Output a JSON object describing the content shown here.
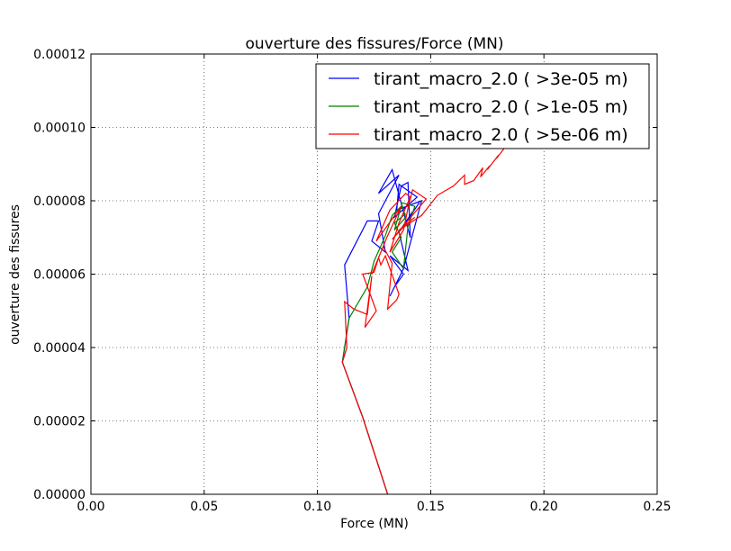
{
  "chart_data": {
    "type": "line",
    "title": "ouverture des fissures/Force (MN)",
    "xlabel": "Force (MN)",
    "ylabel": "ouverture des fissures",
    "xlim": [
      0.0,
      0.25
    ],
    "ylim": [
      0.0,
      0.00012
    ],
    "x_ticks": [
      {
        "value": 0.0,
        "label": "0.00"
      },
      {
        "value": 0.05,
        "label": "0.05"
      },
      {
        "value": 0.1,
        "label": "0.10"
      },
      {
        "value": 0.15,
        "label": "0.15"
      },
      {
        "value": 0.2,
        "label": "0.20"
      },
      {
        "value": 0.25,
        "label": "0.25"
      }
    ],
    "y_ticks": [
      {
        "value": 0.0,
        "label": "0.00000"
      },
      {
        "value": 2e-05,
        "label": "0.00002"
      },
      {
        "value": 4e-05,
        "label": "0.00004"
      },
      {
        "value": 6e-05,
        "label": "0.00006"
      },
      {
        "value": 8e-05,
        "label": "0.00008"
      },
      {
        "value": 0.0001,
        "label": "0.00010"
      },
      {
        "value": 0.00012,
        "label": "0.00012"
      }
    ],
    "grid": true,
    "legend_position": "top-right",
    "series": [
      {
        "name": "tirant_macro_2.0 ( >3e-05 m)",
        "color": "#0000ff",
        "x": [
          0.131,
          0.12,
          0.111,
          0.114,
          0.112,
          0.122,
          0.127,
          0.124,
          0.13,
          0.127,
          0.136,
          0.127,
          0.133,
          0.141,
          0.14,
          0.137,
          0.134,
          0.144,
          0.136,
          0.135,
          0.146,
          0.138,
          0.132,
          0.134,
          0.138,
          0.132,
          0.14,
          0.136,
          0.142,
          0.139,
          0.145
        ],
        "y": [
          0.0,
          2.1e-05,
          3.6e-05,
          4.8e-05,
          6.25e-05,
          7.45e-05,
          7.45e-05,
          6.9e-05,
          6.6e-05,
          7.65e-05,
          8.7e-05,
          8.2e-05,
          8.85e-05,
          7e-05,
          8.5e-05,
          8.4e-05,
          7.55e-05,
          8.1e-05,
          8.45e-05,
          7.75e-05,
          8e-05,
          6.15e-05,
          5.4e-05,
          5.65e-05,
          6e-05,
          6.5e-05,
          6.1e-05,
          7.15e-05,
          7.7e-05,
          7.4e-05,
          7.95e-05
        ]
      },
      {
        "name": "tirant_macro_2.0 ( >1e-05 m)",
        "color": "#008000",
        "x": [
          0.131,
          0.12,
          0.111,
          0.114,
          0.122,
          0.125,
          0.13,
          0.133,
          0.137,
          0.134,
          0.139,
          0.137,
          0.143,
          0.14,
          0.138,
          0.133,
          0.137,
          0.134,
          0.139
        ],
        "y": [
          0.0,
          2.1e-05,
          3.6e-05,
          4.8e-05,
          5.65e-05,
          6.35e-05,
          7.05e-05,
          7.6e-05,
          7.85e-05,
          7.2e-05,
          7.55e-05,
          7.95e-05,
          7.85e-05,
          7.3e-05,
          6.15e-05,
          6.6e-05,
          7e-05,
          7.4e-05,
          7.65e-05
        ]
      },
      {
        "name": "tirant_macro_2.0 ( >5e-06 m)",
        "color": "#ff0000",
        "x": [
          0.131,
          0.12,
          0.111,
          0.113,
          0.112,
          0.116,
          0.122,
          0.124,
          0.121,
          0.126,
          0.12,
          0.125,
          0.127,
          0.128,
          0.13,
          0.136,
          0.135,
          0.131,
          0.133,
          0.129,
          0.124,
          0.131,
          0.137,
          0.126,
          0.132,
          0.139,
          0.141,
          0.136,
          0.133,
          0.132,
          0.138,
          0.14,
          0.142,
          0.148,
          0.133,
          0.139,
          0.143,
          0.136,
          0.146,
          0.153,
          0.16,
          0.165,
          0.165,
          0.169,
          0.173,
          0.172,
          0.176,
          0.175,
          0.18,
          0.179,
          0.184,
          0.183,
          0.188,
          0.187,
          0.192,
          0.191,
          0.196,
          0.195,
          0.2,
          0.199,
          0.202
        ],
        "y": [
          0.0,
          2.1e-05,
          3.6e-05,
          4e-05,
          5.25e-05,
          5.05e-05,
          4.9e-05,
          5.95e-05,
          4.55e-05,
          5e-05,
          6e-05,
          6.05e-05,
          6.45e-05,
          6.25e-05,
          6.5e-05,
          5.45e-05,
          5.3e-05,
          5.05e-05,
          6.3e-05,
          6.75e-05,
          6e-05,
          7.05e-05,
          7.85e-05,
          6.9e-05,
          7.75e-05,
          8.2e-05,
          8.1e-05,
          7.4e-05,
          6.8e-05,
          6.6e-05,
          7.2e-05,
          7.8e-05,
          8.3e-05,
          8.05e-05,
          6.95e-05,
          7.35e-05,
          7.55e-05,
          7.2e-05,
          7.6e-05,
          8.15e-05,
          8.4e-05,
          8.7e-05,
          8.45e-05,
          8.55e-05,
          8.9e-05,
          8.65e-05,
          8.95e-05,
          8.85e-05,
          9.25e-05,
          9.15e-05,
          9.55e-05,
          9.45e-05,
          9.85e-05,
          9.75e-05,
          0.0001015,
          0.0001005,
          0.0001045,
          0.0001035,
          0.0001075,
          0.0001065,
          0.0001085
        ]
      }
    ]
  }
}
